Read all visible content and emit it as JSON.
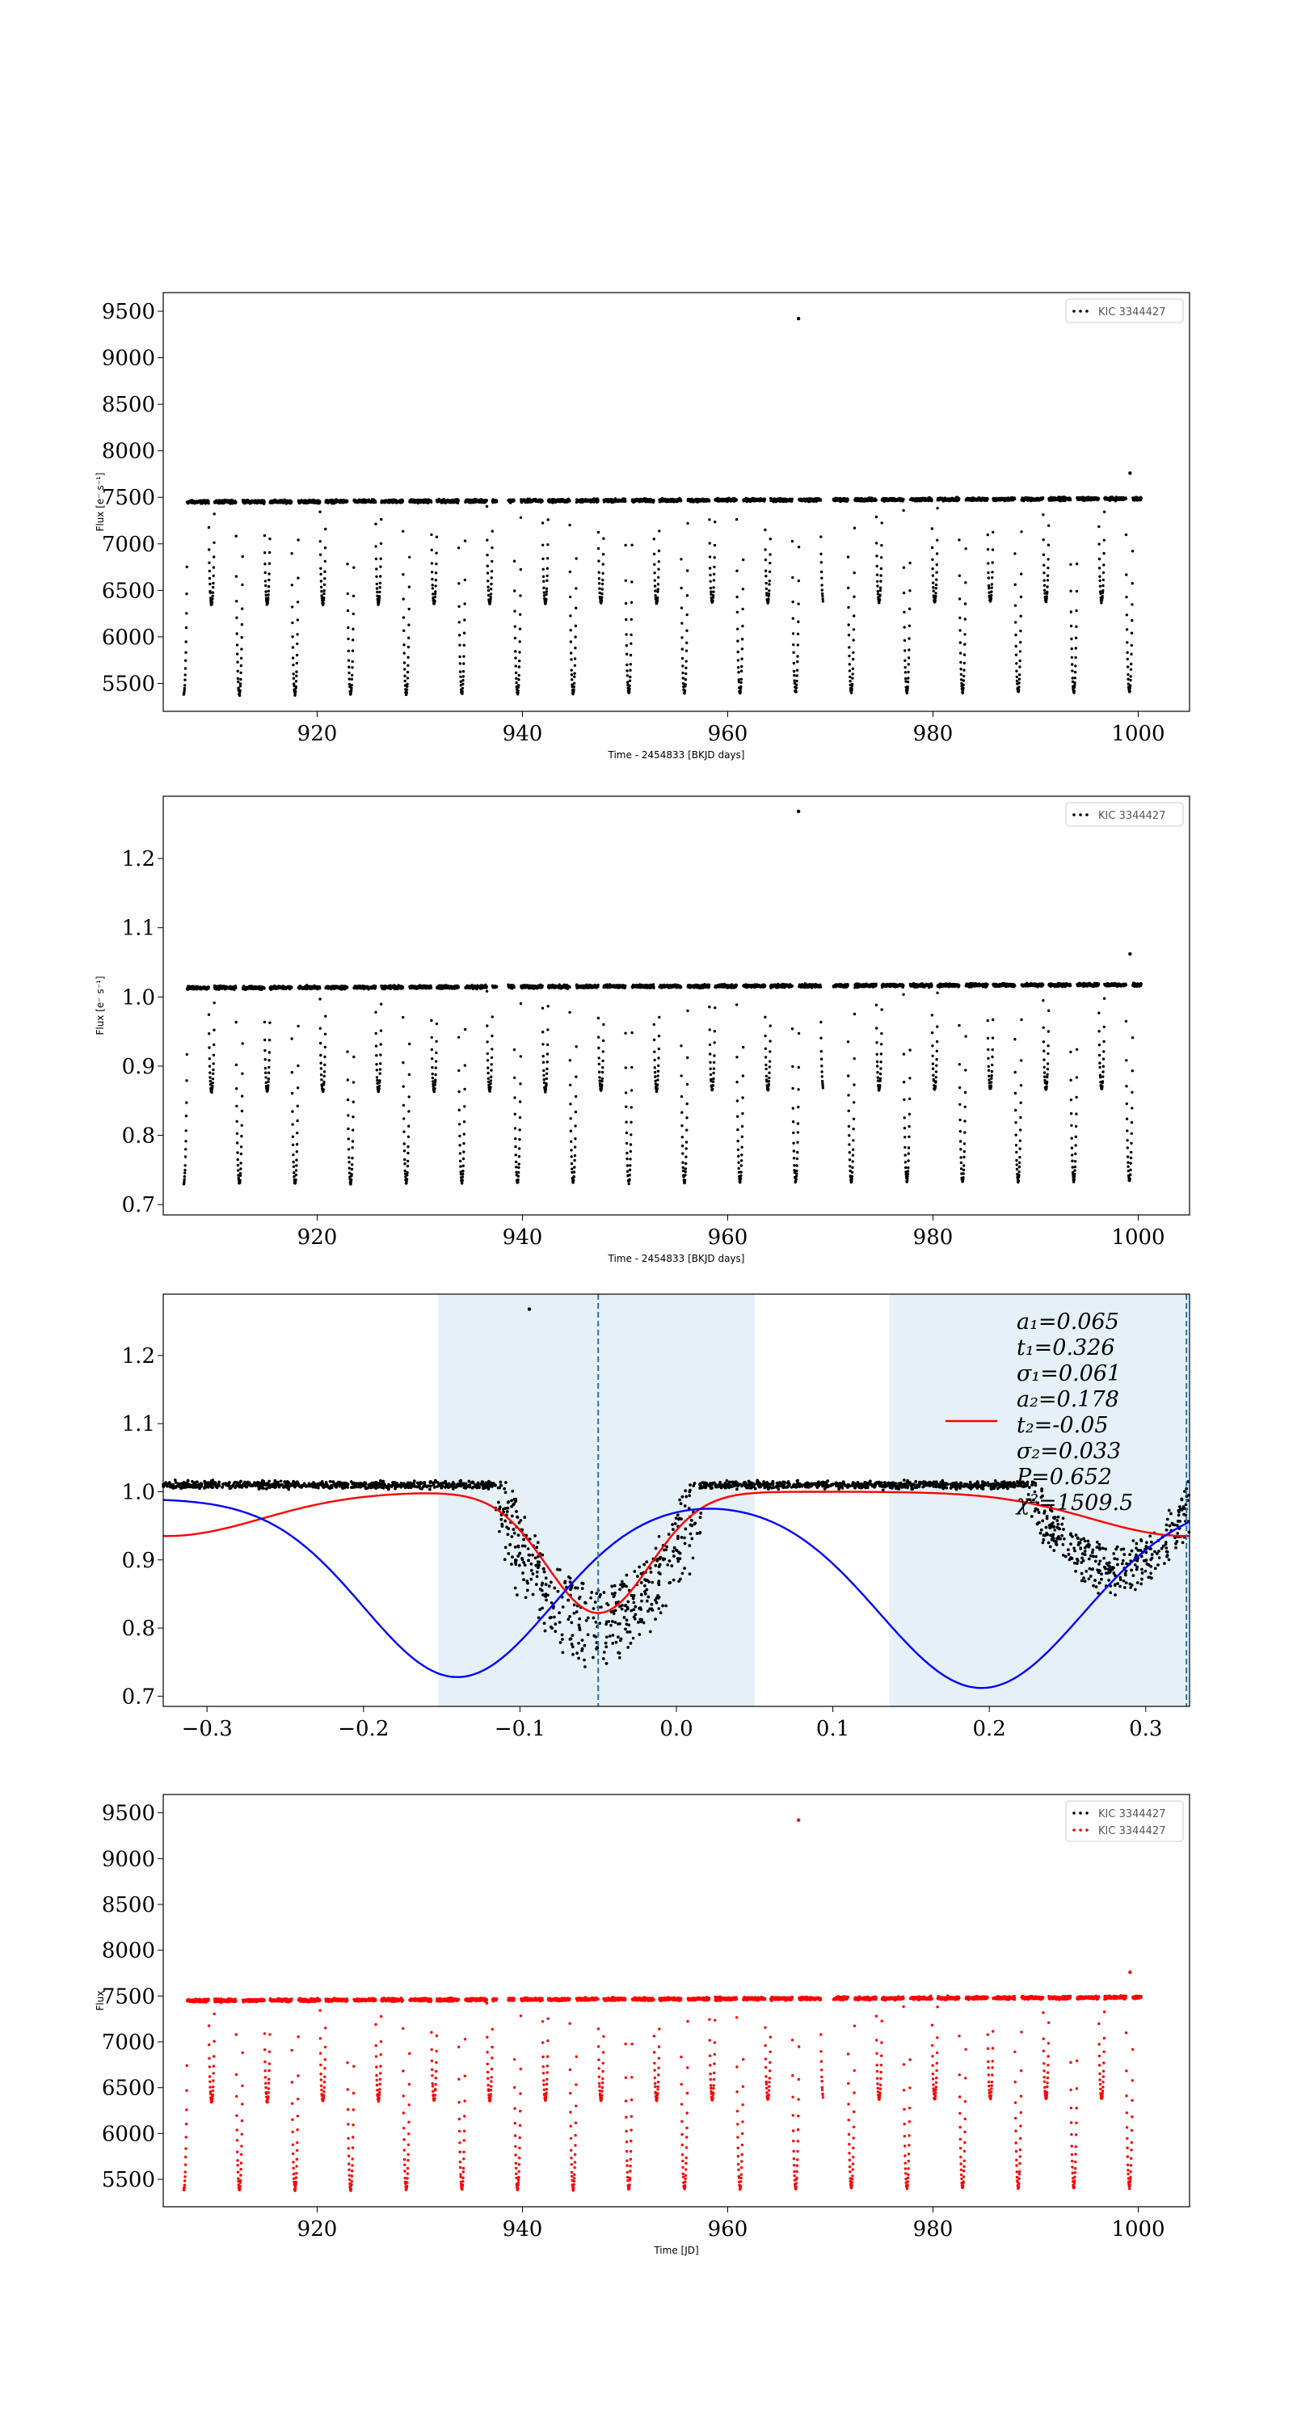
{
  "chart_data": [
    {
      "type": "scatter",
      "title": "",
      "xlabel": "Time - 2454833 [BKJD days]",
      "ylabel": "Flux [e⁻ s⁻¹]",
      "xlim": [
        905,
        1005
      ],
      "ylim": [
        5200,
        9700
      ],
      "xticks": [
        "920",
        "940",
        "960",
        "980",
        "1000"
      ],
      "xtick_values": [
        920,
        940,
        960,
        980,
        1000
      ],
      "yticks": [
        "5500",
        "6000",
        "6500",
        "7000",
        "7500",
        "8000",
        "8500",
        "9000",
        "9500"
      ],
      "ytick_values": [
        5500,
        6000,
        6500,
        7000,
        7500,
        8000,
        8500,
        9000,
        9500
      ],
      "grid": false,
      "legend_position": "top-right",
      "series": [
        {
          "name": "KIC 3344427",
          "color": "#000000",
          "description_model": {
            "period_days": 5.42,
            "baseline": 7450,
            "eclipses": [
              {
                "phase": 0.0,
                "depth": 2070,
                "width": 0.06
              },
              {
                "phase": 0.5,
                "depth": 1100,
                "width": 0.05
              }
            ],
            "gaps": [
              [
                937.5,
                938.6
              ],
              [
                969.3,
                970.3
              ]
            ],
            "time_range": [
              907,
              1000.3
            ],
            "outliers": [
              [
                966.9,
                9420
              ],
              [
                999.2,
                7760
              ]
            ]
          }
        }
      ]
    },
    {
      "type": "scatter",
      "title": "",
      "xlabel": "Time - 2454833 [BKJD days]",
      "ylabel": "Flux [e⁻ s⁻¹]",
      "xlim": [
        905,
        1005
      ],
      "ylim": [
        0.685,
        1.29
      ],
      "xticks": [
        "920",
        "940",
        "960",
        "980",
        "1000"
      ],
      "xtick_values": [
        920,
        940,
        960,
        980,
        1000
      ],
      "yticks": [
        "0.7",
        "0.8",
        "0.9",
        "1.0",
        "1.1",
        "1.2"
      ],
      "ytick_values": [
        0.7,
        0.8,
        0.9,
        1.0,
        1.1,
        1.2
      ],
      "grid": false,
      "legend_position": "top-right",
      "series": [
        {
          "name": "KIC 3344427",
          "color": "#000000",
          "description_model": {
            "period_days": 5.42,
            "baseline": 1.013,
            "eclipses": [
              {
                "phase": 0.0,
                "depth": 0.283,
                "width": 0.06
              },
              {
                "phase": 0.5,
                "depth": 0.15,
                "width": 0.05
              }
            ],
            "gaps": [
              [
                937.5,
                938.6
              ],
              [
                969.3,
                970.3
              ]
            ],
            "time_range": [
              907,
              1000.3
            ],
            "outliers": [
              [
                966.9,
                1.268
              ],
              [
                999.2,
                1.062
              ]
            ]
          }
        }
      ]
    },
    {
      "type": "scatter",
      "title": "",
      "xlabel": "",
      "ylabel": "",
      "xlim": [
        -0.328,
        0.328
      ],
      "ylim": [
        0.685,
        1.29
      ],
      "xticks": [
        "−0.3",
        "−0.2",
        "−0.1",
        "0.0",
        "0.1",
        "0.2",
        "0.3"
      ],
      "xtick_values": [
        -0.3,
        -0.2,
        -0.1,
        0.0,
        0.1,
        0.2,
        0.3
      ],
      "yticks": [
        "0.7",
        "0.8",
        "0.9",
        "1.0",
        "1.1",
        "1.2"
      ],
      "ytick_values": [
        0.7,
        0.8,
        0.9,
        1.0,
        1.1,
        1.2
      ],
      "grid": false,
      "shaded_regions": [
        [
          -0.152,
          0.05
        ],
        [
          0.136,
          0.328
        ]
      ],
      "vlines": [
        -0.05,
        0.326
      ],
      "series": [
        {
          "name": "",
          "kind": "points",
          "color": "#000000",
          "description_model": {
            "baseline": 1.01,
            "eclipses": [
              {
                "center": -0.05,
                "depth": 0.265,
                "width": 0.03
              },
              {
                "center": 0.28,
                "depth": 0.16,
                "width": 0.025
              }
            ],
            "outliers": [
              [
                -0.094,
                1.268
              ]
            ]
          }
        },
        {
          "name": "",
          "kind": "line",
          "color": "#ff0000",
          "model": {
            "a1": 0.065,
            "t1": 0.326,
            "s1": 0.061,
            "a2": 0.178,
            "t2": -0.05,
            "s2": 0.033
          }
        },
        {
          "name": "",
          "kind": "line",
          "color": "#0000ff",
          "model": {
            "baseline": 0.99,
            "dips": [
              {
                "center": -0.14,
                "depth": 0.262,
                "width": 0.06
              },
              {
                "center": 0.195,
                "depth": 0.278,
                "width": 0.065
              }
            ]
          }
        }
      ],
      "annotations": [
        "a₁=0.065",
        "t₁=0.326",
        "σ₁=0.061",
        "a₂=0.178",
        "t₂=-0.05",
        "σ₂=0.033",
        "P=0.652",
        "χ²=1509.5"
      ]
    },
    {
      "type": "scatter",
      "title": "",
      "xlabel": "Time [JD]",
      "ylabel": "Flux",
      "xlim": [
        905,
        1005
      ],
      "ylim": [
        5200,
        9700
      ],
      "xticks": [
        "920",
        "940",
        "960",
        "980",
        "1000"
      ],
      "xtick_values": [
        920,
        940,
        960,
        980,
        1000
      ],
      "yticks": [
        "5500",
        "6000",
        "6500",
        "7000",
        "7500",
        "8000",
        "8500",
        "9000",
        "9500"
      ],
      "ytick_values": [
        5500,
        6000,
        6500,
        7000,
        7500,
        8000,
        8500,
        9000,
        9500
      ],
      "grid": false,
      "legend_position": "top-right",
      "series": [
        {
          "name": "KIC 3344427",
          "color": "#000000",
          "hidden_under_overlay": true
        },
        {
          "name": "KIC 3344427",
          "color": "#ff0000",
          "description_model": {
            "period_days": 5.42,
            "baseline": 7450,
            "eclipses": [
              {
                "phase": 0.0,
                "depth": 2070,
                "width": 0.06
              },
              {
                "phase": 0.5,
                "depth": 1100,
                "width": 0.05
              }
            ],
            "gaps": [
              [
                937.5,
                938.6
              ],
              [
                969.3,
                970.3
              ]
            ],
            "time_range": [
              907,
              1000.3
            ],
            "outliers": [
              [
                966.9,
                9420
              ],
              [
                999.2,
                7760
              ]
            ]
          }
        }
      ]
    }
  ]
}
